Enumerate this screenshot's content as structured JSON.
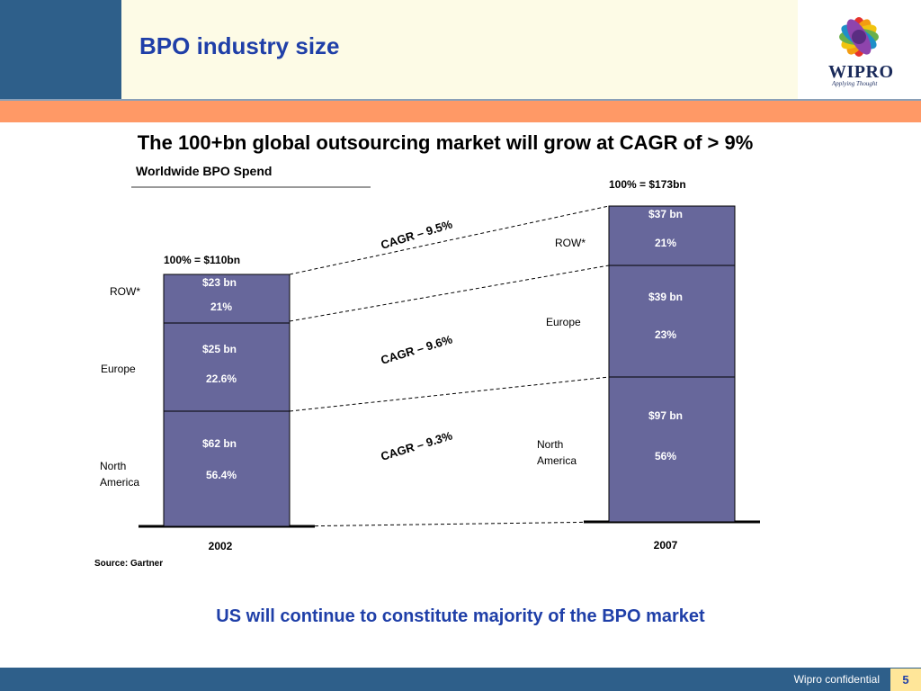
{
  "slide": {
    "title": "BPO industry size",
    "headline": "The 100+bn global outsourcing market will grow at CAGR of > 9%",
    "conclusion": "US will continue to constitute majority of the BPO market",
    "footer_text": "Wipro confidential",
    "page_number": "5"
  },
  "logo": {
    "name": "WIPRO",
    "tagline": "Applying Thought",
    "icon": "rainbow-flower-logo"
  },
  "colors": {
    "header_blue": "#2e5f8a",
    "accent_orange": "#ff9966",
    "bar_fill": "#67679b",
    "title_blue": "#1f3fa8"
  },
  "chart_data": {
    "type": "bar",
    "stacked": true,
    "title": "Worldwide BPO Spend",
    "source": "Source: Gartner",
    "categories": [
      "2002",
      "2007"
    ],
    "totals": [
      "100% = $110bn",
      "100% = $173bn"
    ],
    "series": [
      {
        "name": "North America",
        "values": [
          62,
          97
        ],
        "value_labels": [
          "$62 bn",
          "$97 bn"
        ],
        "share_labels": [
          "56.4%",
          "56%"
        ]
      },
      {
        "name": "Europe",
        "values": [
          25,
          39
        ],
        "value_labels": [
          "$25 bn",
          "$39 bn"
        ],
        "share_labels": [
          "22.6%",
          "23%"
        ]
      },
      {
        "name": "ROW*",
        "values": [
          23,
          37
        ],
        "value_labels": [
          "$23 bn",
          "$37 bn"
        ],
        "share_labels": [
          "21%",
          "21%"
        ]
      }
    ],
    "cagr_labels": [
      "CAGR – 9.3%",
      "CAGR – 9.6%",
      "CAGR – 9.5%"
    ],
    "legend": "none"
  }
}
